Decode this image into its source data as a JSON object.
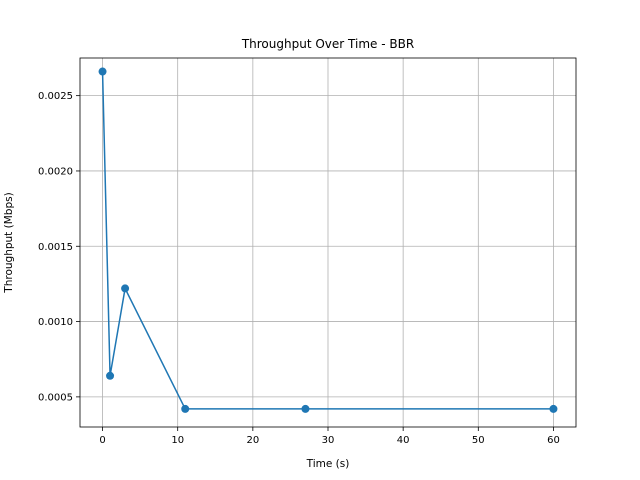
{
  "chart_data": {
    "type": "line",
    "title": "Throughput Over Time - BBR",
    "xlabel": "Time (s)",
    "ylabel": "Throughput (Mbps)",
    "xlim": [
      -3,
      63
    ],
    "ylim": [
      0.0003,
      0.00275
    ],
    "xticks": [
      0,
      10,
      20,
      30,
      40,
      50,
      60
    ],
    "xtick_labels": [
      "0",
      "10",
      "20",
      "30",
      "40",
      "50",
      "60"
    ],
    "yticks": [
      0.0005,
      0.001,
      0.0015,
      0.002,
      0.0025
    ],
    "ytick_labels": [
      "0.0005",
      "0.0010",
      "0.0015",
      "0.0020",
      "0.0025"
    ],
    "grid": true,
    "marker": "circle",
    "series": [
      {
        "x": [
          0,
          1,
          3,
          11,
          27,
          60
        ],
        "values": [
          0.00266,
          0.00064,
          0.00122,
          0.00042,
          0.00042,
          0.00042
        ],
        "color": "#1f77b4"
      }
    ]
  }
}
